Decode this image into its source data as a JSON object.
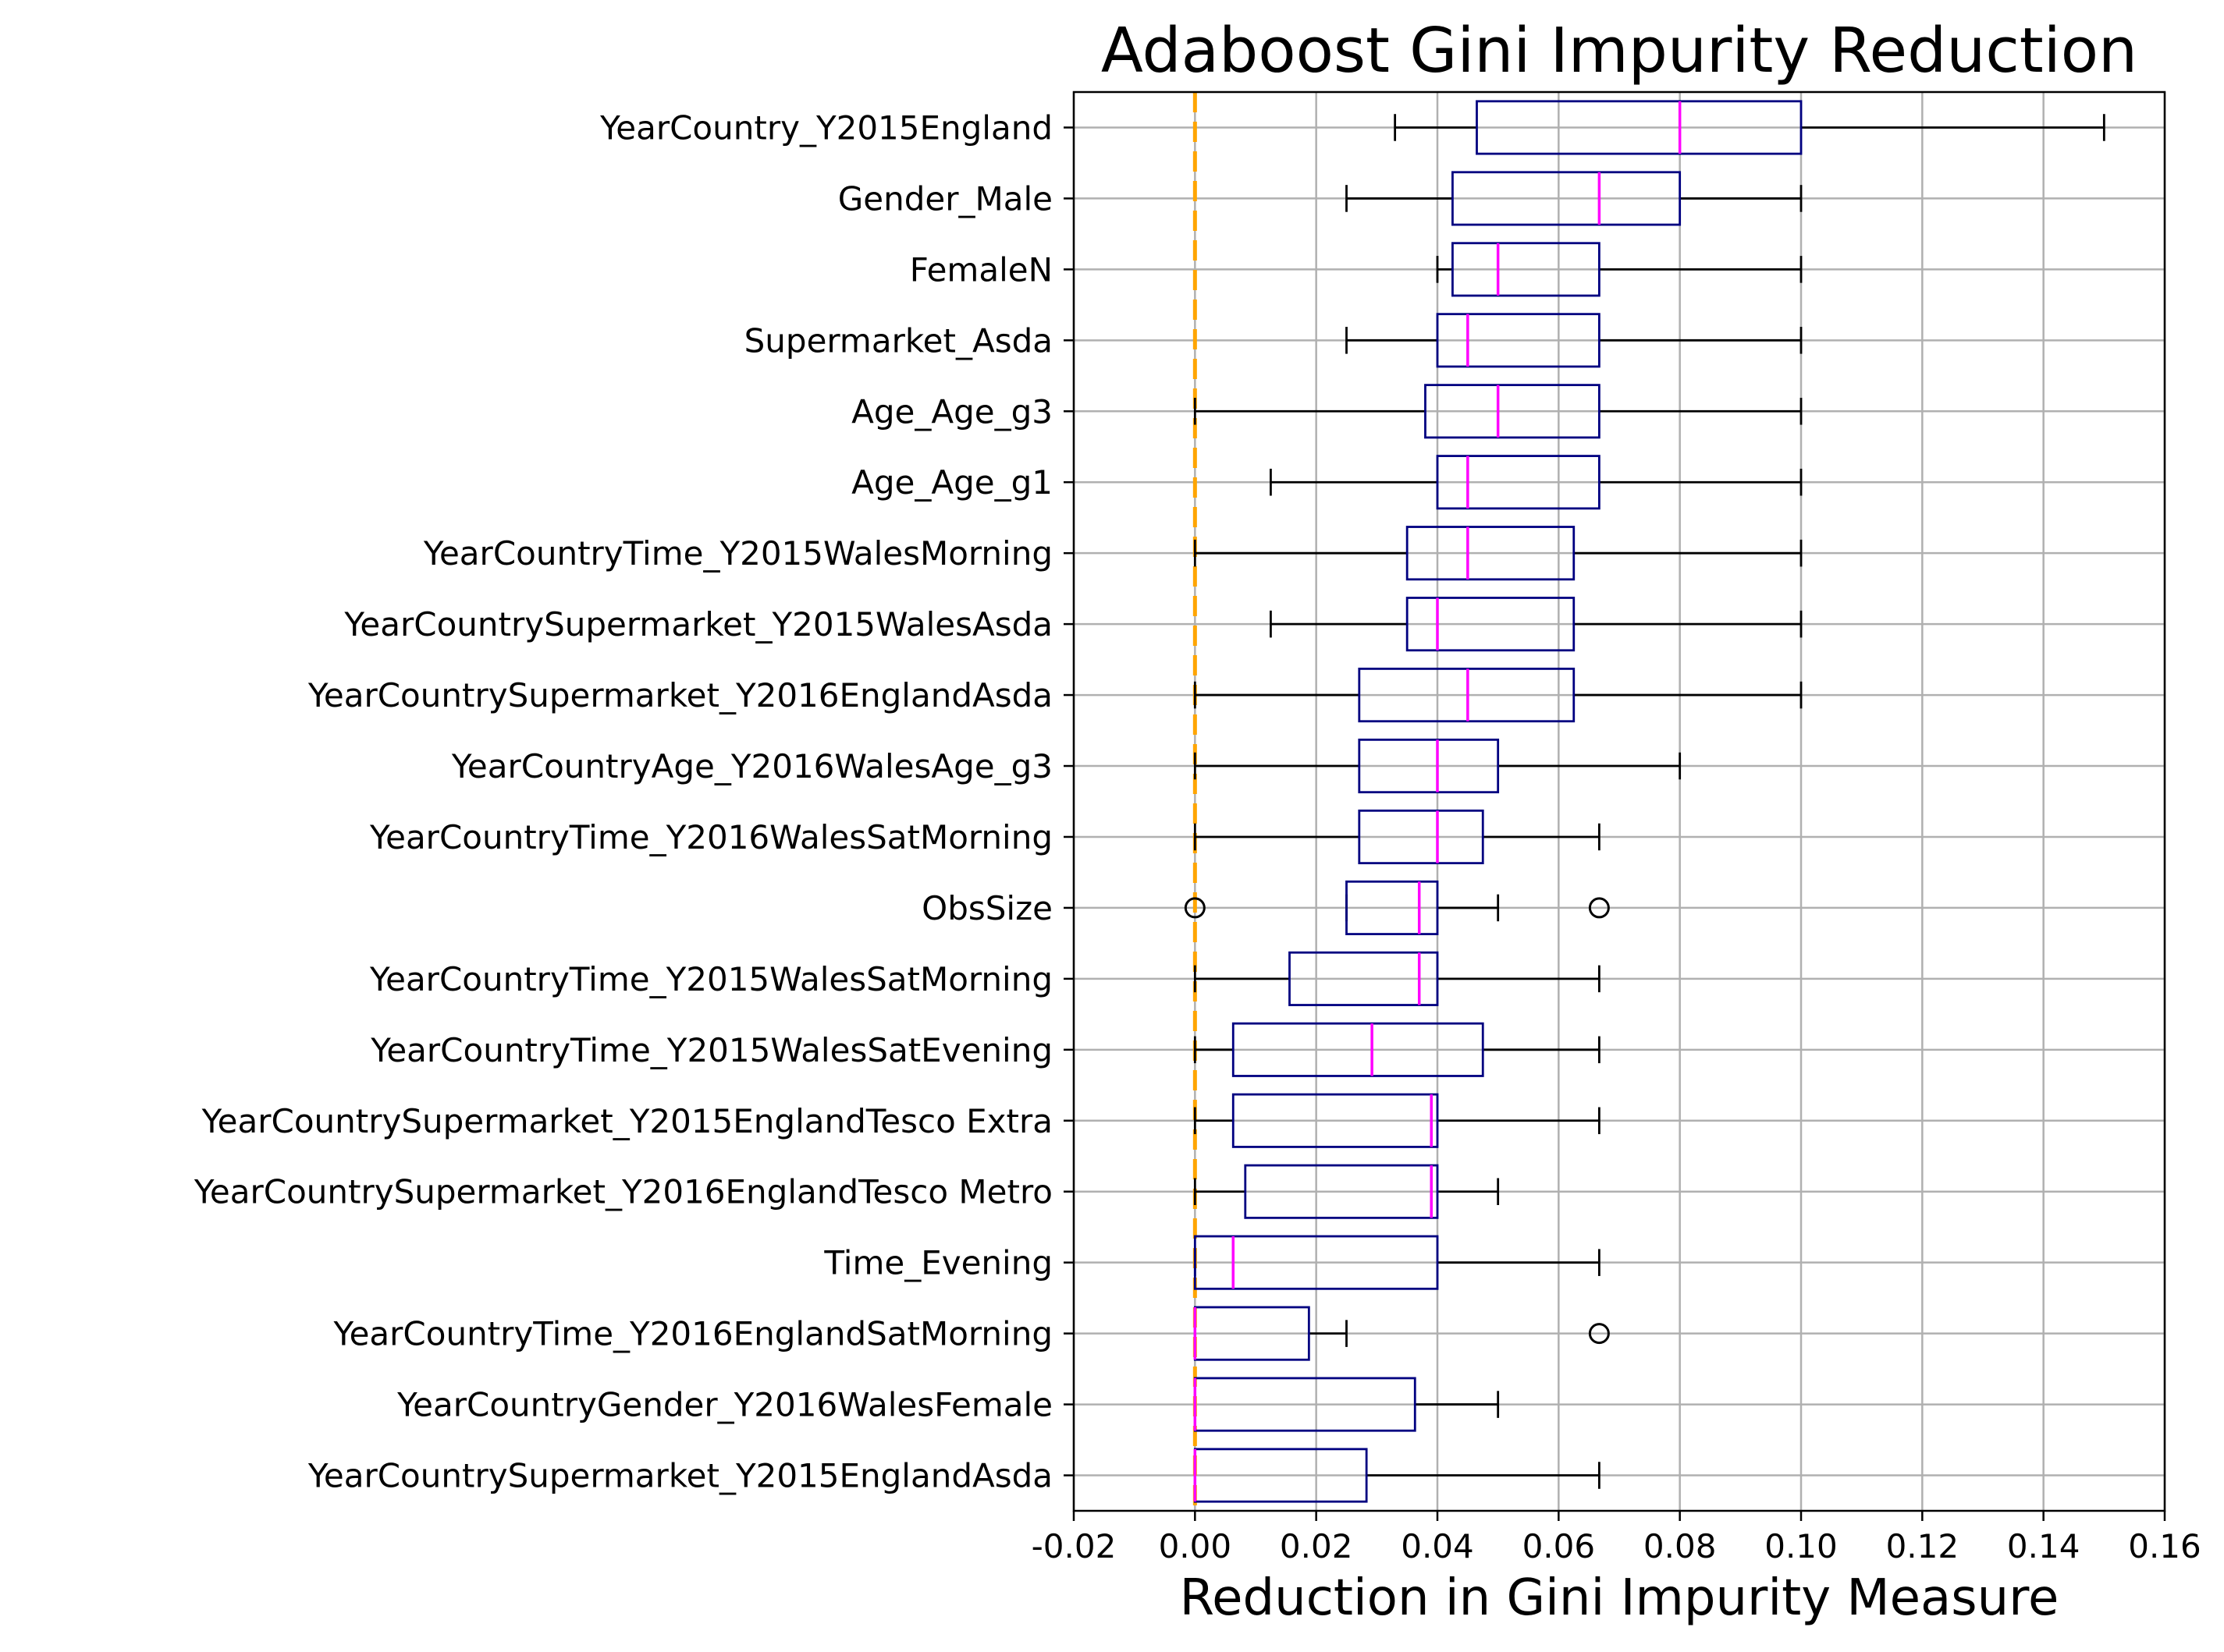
{
  "chart_data": {
    "type": "boxplot",
    "title": "Adaboost Gini Impurity Reduction",
    "xlabel": "Reduction in Gini Impurity Measure",
    "ylabel": "",
    "xlim": [
      -0.02,
      0.16
    ],
    "xticks": [
      -0.02,
      0.0,
      0.02,
      0.04,
      0.06,
      0.08,
      0.1,
      0.12,
      0.14,
      0.16
    ],
    "xtick_labels": [
      "-0.02",
      "0.00",
      "0.02",
      "0.04",
      "0.06",
      "0.08",
      "0.10",
      "0.12",
      "0.14",
      "0.16"
    ],
    "grid": true,
    "reference_line": {
      "x": 0.0,
      "style": "dashed",
      "color": "#ffa500"
    },
    "colors": {
      "box": "#000080",
      "median": "#ff00ff",
      "whisker": "#000000",
      "grid": "#b0b0b0"
    },
    "features": [
      {
        "label": "YearCountry_Y2015England",
        "whislo": 0.033,
        "q1": 0.0465,
        "med": 0.08,
        "q3": 0.1,
        "whishi": 0.15,
        "fliers": []
      },
      {
        "label": "Gender_Male",
        "whislo": 0.025,
        "q1": 0.0425,
        "med": 0.0667,
        "q3": 0.08,
        "whishi": 0.1,
        "fliers": []
      },
      {
        "label": "FemaleN",
        "whislo": 0.04,
        "q1": 0.0425,
        "med": 0.05,
        "q3": 0.0667,
        "whishi": 0.1,
        "fliers": []
      },
      {
        "label": "Supermarket_Asda",
        "whislo": 0.025,
        "q1": 0.04,
        "med": 0.045,
        "q3": 0.0667,
        "whishi": 0.1,
        "fliers": []
      },
      {
        "label": "Age_Age_g3",
        "whislo": 0.0,
        "q1": 0.038,
        "med": 0.05,
        "q3": 0.0667,
        "whishi": 0.1,
        "fliers": []
      },
      {
        "label": "Age_Age_g1",
        "whislo": 0.0125,
        "q1": 0.04,
        "med": 0.045,
        "q3": 0.0667,
        "whishi": 0.1,
        "fliers": []
      },
      {
        "label": "YearCountryTime_Y2015WalesMorning",
        "whislo": 0.0,
        "q1": 0.035,
        "med": 0.045,
        "q3": 0.0625,
        "whishi": 0.1,
        "fliers": []
      },
      {
        "label": "YearCountrySupermarket_Y2015WalesAsda",
        "whislo": 0.0125,
        "q1": 0.035,
        "med": 0.04,
        "q3": 0.0625,
        "whishi": 0.1,
        "fliers": []
      },
      {
        "label": "YearCountrySupermarket_Y2016EnglandAsda",
        "whislo": 0.0,
        "q1": 0.0271,
        "med": 0.045,
        "q3": 0.0625,
        "whishi": 0.1,
        "fliers": []
      },
      {
        "label": "YearCountryAge_Y2016WalesAge_g3",
        "whislo": 0.0,
        "q1": 0.0271,
        "med": 0.04,
        "q3": 0.05,
        "whishi": 0.08,
        "fliers": []
      },
      {
        "label": "YearCountryTime_Y2016WalesSatMorning",
        "whislo": 0.0,
        "q1": 0.0271,
        "med": 0.04,
        "q3": 0.0475,
        "whishi": 0.0667,
        "fliers": []
      },
      {
        "label": "ObsSize",
        "whislo": 0.025,
        "q1": 0.025,
        "med": 0.037,
        "q3": 0.04,
        "whishi": 0.05,
        "fliers": [
          0.0,
          0.0667
        ]
      },
      {
        "label": "YearCountryTime_Y2015WalesSatMorning",
        "whislo": 0.0,
        "q1": 0.0156,
        "med": 0.037,
        "q3": 0.04,
        "whishi": 0.0667,
        "fliers": []
      },
      {
        "label": "YearCountryTime_Y2015WalesSatEvening",
        "whislo": 0.0,
        "q1": 0.0063,
        "med": 0.0292,
        "q3": 0.0475,
        "whishi": 0.0667,
        "fliers": []
      },
      {
        "label": "YearCountrySupermarket_Y2015EnglandTesco Extra",
        "whislo": 0.0,
        "q1": 0.0063,
        "med": 0.039,
        "q3": 0.04,
        "whishi": 0.0667,
        "fliers": []
      },
      {
        "label": "YearCountrySupermarket_Y2016EnglandTesco Metro",
        "whislo": 0.0,
        "q1": 0.0083,
        "med": 0.039,
        "q3": 0.04,
        "whishi": 0.05,
        "fliers": []
      },
      {
        "label": "Time_Evening",
        "whislo": 0.0,
        "q1": 0.0,
        "med": 0.0063,
        "q3": 0.04,
        "whishi": 0.0667,
        "fliers": []
      },
      {
        "label": "YearCountryTime_Y2016EnglandSatMorning",
        "whislo": 0.0,
        "q1": 0.0,
        "med": 0.0,
        "q3": 0.0188,
        "whishi": 0.025,
        "fliers": [
          0.0667
        ]
      },
      {
        "label": "YearCountryGender_Y2016WalesFemale",
        "whislo": 0.0,
        "q1": 0.0,
        "med": 0.0,
        "q3": 0.0363,
        "whishi": 0.05,
        "fliers": []
      },
      {
        "label": "YearCountrySupermarket_Y2015EnglandAsda",
        "whislo": 0.0,
        "q1": 0.0,
        "med": 0.0,
        "q3": 0.0283,
        "whishi": 0.0667,
        "fliers": []
      }
    ]
  }
}
